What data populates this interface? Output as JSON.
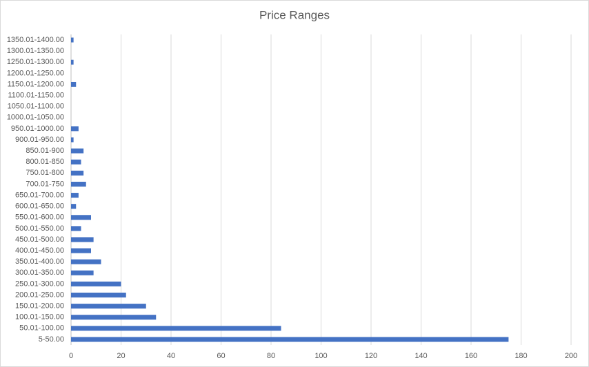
{
  "chart_data": {
    "type": "bar",
    "orientation": "horizontal",
    "title": "Price Ranges",
    "categories": [
      "5-50.00",
      "50.01-100.00",
      "100.01-150.00",
      "150.01-200.00",
      "200.01-250.00",
      "250.01-300.00",
      "300.01-350.00",
      "350.01-400.00",
      "400.01-450.00",
      "450.01-500.00",
      "500.01-550.00",
      "550.01-600.00",
      "600.01-650.00",
      "650.01-700.00",
      "700.01-750",
      "750.01-800",
      "800.01-850",
      "850.01-900",
      "900.01-950.00",
      "950.01-1000.00",
      "1000.01-1050.00",
      "1050.01-1100.00",
      "1100.01-1150.00",
      "1150.01-1200.00",
      "1200.01-1250.00",
      "1250.01-1300.00",
      "1300.01-1350.00",
      "1350.01-1400.00"
    ],
    "values": [
      175,
      84,
      34,
      30,
      22,
      20,
      9,
      12,
      8,
      9,
      4,
      8,
      2,
      3,
      6,
      5,
      4,
      5,
      1,
      3,
      0,
      0,
      0,
      2,
      0,
      1,
      0,
      1
    ],
    "color": "#4472c4",
    "xlim": [
      0,
      200
    ],
    "xticks": [
      0,
      20,
      40,
      60,
      80,
      100,
      120,
      140,
      160,
      180,
      200
    ],
    "grid": true
  }
}
